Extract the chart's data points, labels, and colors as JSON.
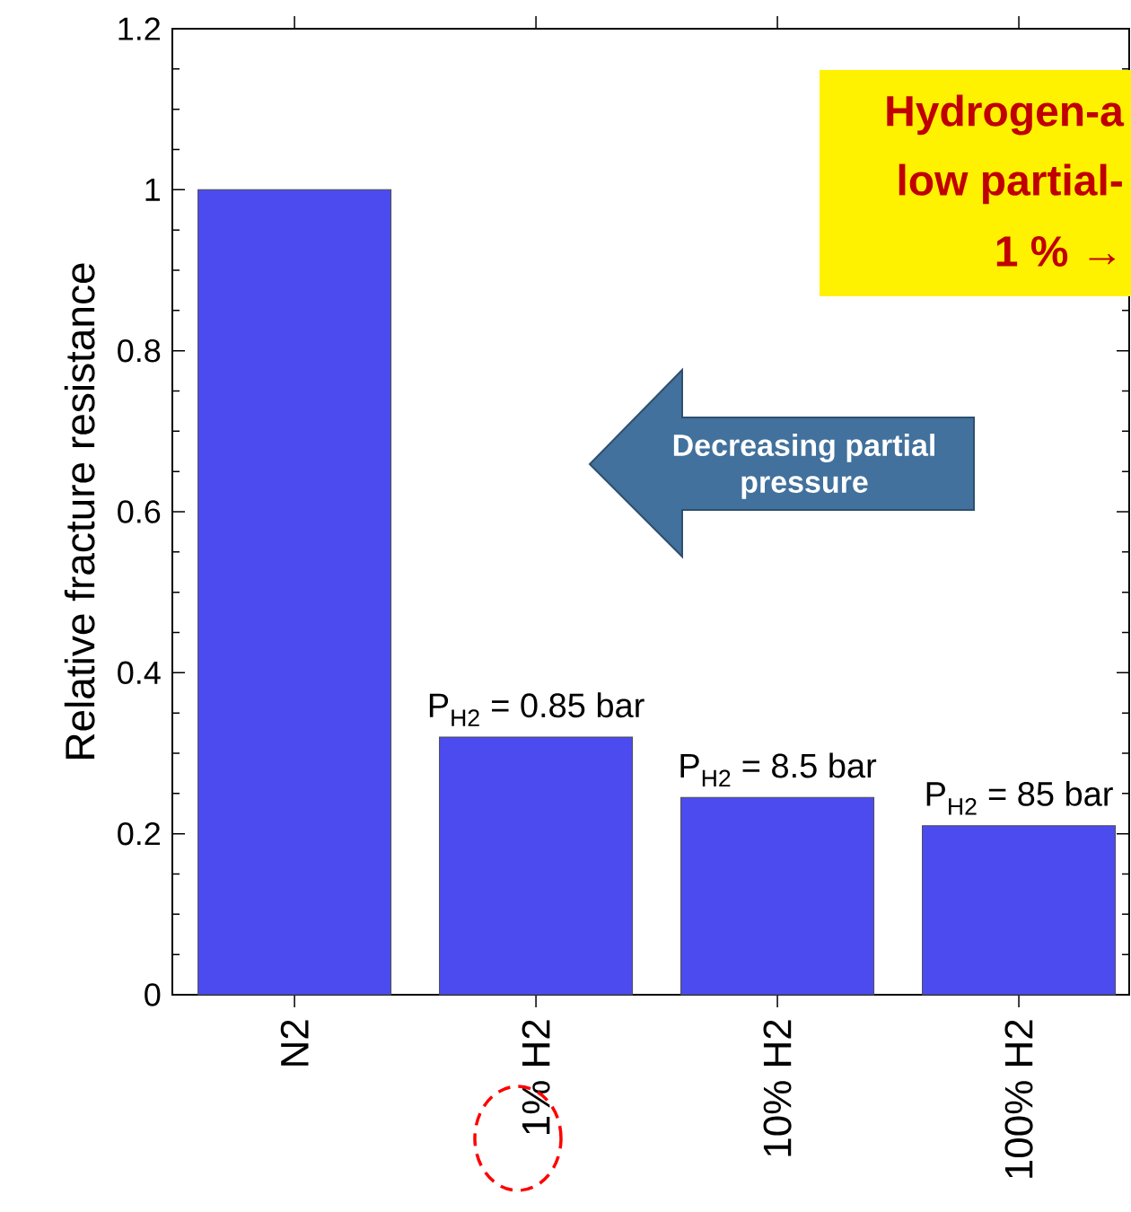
{
  "chart_data": {
    "type": "bar",
    "ylabel": "Relative fracture resistance",
    "categories": [
      "N2",
      "1% H2",
      "10% H2",
      "100% H2"
    ],
    "values": [
      1.0,
      0.32,
      0.245,
      0.21
    ],
    "color": "#4b4bf0",
    "ylim": [
      0,
      1.2
    ],
    "yticks": [
      0,
      0.2,
      0.4,
      0.6,
      0.8,
      1,
      1.2
    ],
    "grid": false,
    "annotations": [
      {
        "text": "P$_{H2}$ = 0.85 bar",
        "x": "1% H2",
        "y": 0.32
      },
      {
        "text": "P$_{H2}$ = 8.5 bar",
        "x": "10% H2",
        "y": 0.245
      },
      {
        "text": "P$_{H2}$ = 85 bar",
        "x": "100% H2",
        "y": 0.21
      },
      "Decreasing  partial",
      "pressure",
      "Hydrogen-a",
      "low partial-",
      "1 % →"
    ]
  }
}
